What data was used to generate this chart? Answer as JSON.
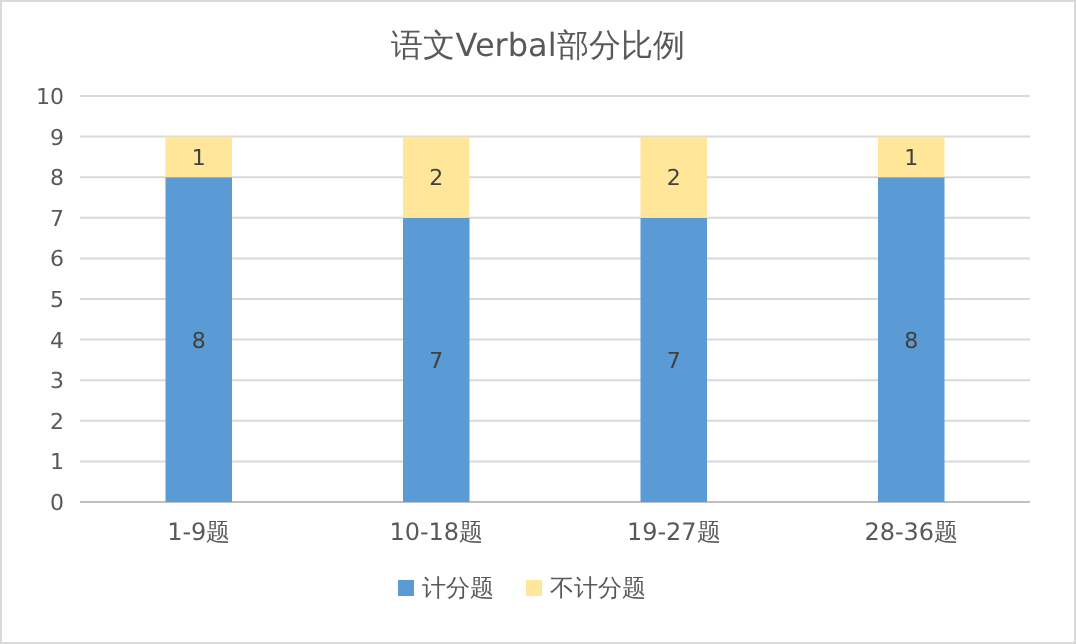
{
  "chart_data": {
    "type": "bar",
    "title": "语文Verbal部分比例",
    "stacked": true,
    "categories": [
      "1-9题",
      "10-18题",
      "19-27题",
      "28-36题"
    ],
    "series": [
      {
        "name": "计分题",
        "color": "#5b9bd5",
        "values": [
          8,
          7,
          7,
          8
        ]
      },
      {
        "name": "不计分题",
        "color": "#ffe699",
        "values": [
          1,
          2,
          2,
          1
        ]
      }
    ],
    "ylim": [
      0,
      10
    ],
    "yticks": [
      0,
      1,
      2,
      3,
      4,
      5,
      6,
      7,
      8,
      9,
      10
    ],
    "grid": "y",
    "legend": "bottom",
    "data_labels": true
  }
}
